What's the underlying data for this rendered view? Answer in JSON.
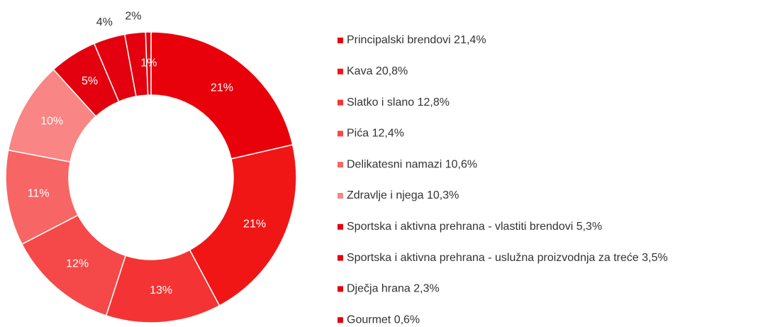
{
  "chart_data": {
    "type": "donut",
    "categories": [
      "Principalski brendovi 21,4%",
      "Kava 20,8%",
      "Slatko i slano 12,8%",
      "Pića 12,4%",
      "Delikatesni namazi 10,6%",
      "Zdravlje i njega 10,3%",
      "Sportska i aktivna prehrana - vlastiti brendovi 5,3%",
      "Sportska i aktivna prehrana - uslužna proizvodnja za treće 3,5%",
      "Dječja hrana 2,3%",
      "Gourmet 0,6%"
    ],
    "values": [
      21.4,
      20.8,
      12.8,
      12.4,
      10.6,
      10.3,
      5.3,
      3.5,
      2.3,
      0.6
    ],
    "value_labels": [
      "21%",
      "21%",
      "13%",
      "12%",
      "11%",
      "10%",
      "5%",
      "4%",
      "2%",
      "1%"
    ],
    "colors": [
      "#e8000b",
      "#f01616",
      "#f43434",
      "#f54848",
      "#f76565",
      "#f98585",
      "#e3000f",
      "#e3000f",
      "#e3000f",
      "#e3000f"
    ],
    "legend": "right"
  }
}
